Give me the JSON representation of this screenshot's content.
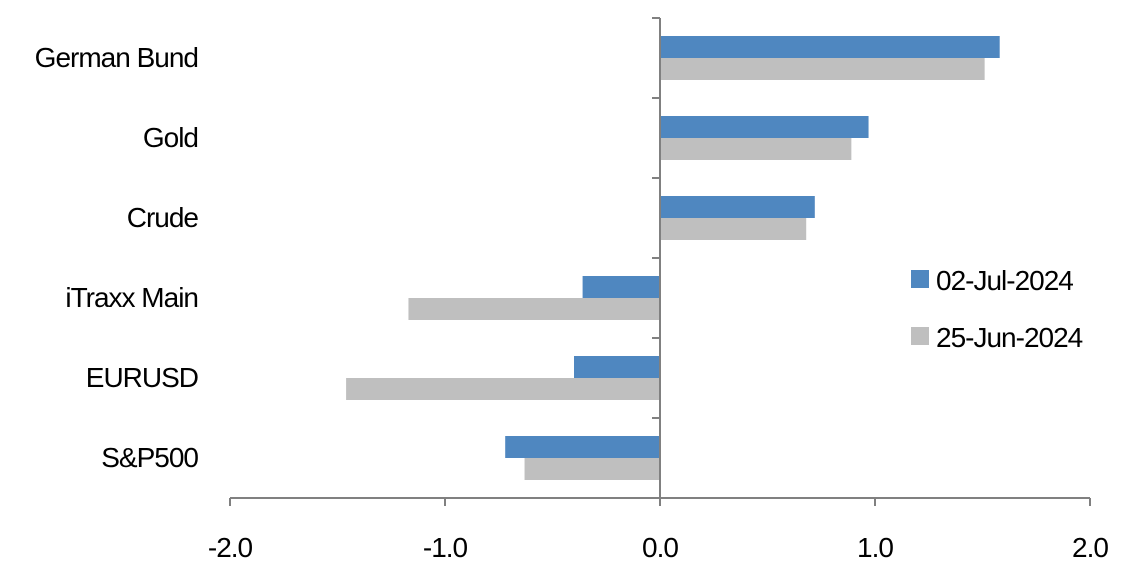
{
  "chart_data": {
    "type": "bar",
    "orientation": "horizontal",
    "categories": [
      "German Bund",
      "Gold",
      "Crude",
      "iTraxx Main",
      "EURUSD",
      "S&P500"
    ],
    "series": [
      {
        "name": "02-Jul-2024",
        "color": "#4F87C0",
        "values": [
          1.58,
          0.97,
          0.72,
          -0.36,
          -0.4,
          -0.72
        ]
      },
      {
        "name": "25-Jun-2024",
        "color": "#BFBFBF",
        "values": [
          1.51,
          0.89,
          0.68,
          -1.17,
          -1.46,
          -0.63
        ]
      }
    ],
    "xlim": [
      -2.0,
      2.0
    ],
    "xticks": [
      "-2.0",
      "-1.0",
      "0.0",
      "1.0",
      "2.0"
    ],
    "grid": false,
    "legend_position": "right"
  }
}
